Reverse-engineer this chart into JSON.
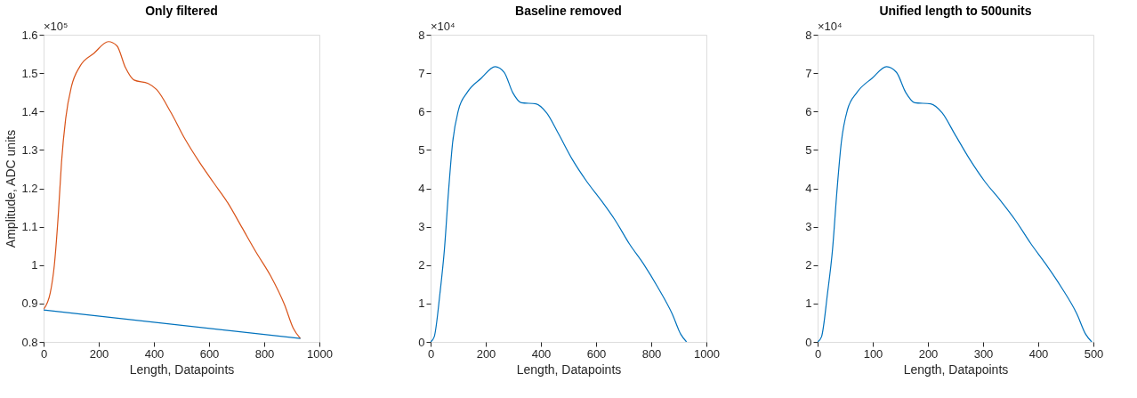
{
  "chart_data": [
    {
      "type": "line",
      "title": "Only filtered",
      "xlabel": "Length, Datapoints",
      "ylabel": "Amplitude, ADC units",
      "annotations": [
        "×10⁵"
      ],
      "xlim": [
        0,
        1000
      ],
      "xticks": [
        0,
        200,
        400,
        600,
        800,
        1000
      ],
      "ylim": [
        0.8,
        1.6
      ],
      "yticks": [
        0.8,
        0.9,
        1,
        1.1,
        1.2,
        1.3,
        1.4,
        1.5,
        1.6
      ],
      "grid": false,
      "series": [
        {
          "color": "#d95319",
          "x": [
            0,
            24,
            39,
            54,
            65,
            80,
            101,
            132,
            183,
            235,
            266,
            297,
            328,
            379,
            410,
            462,
            513,
            565,
            616,
            668,
            720,
            771,
            823,
            874,
            905,
            931
          ],
          "values": [
            0.885,
            0.927,
            1.0,
            1.139,
            1.268,
            1.381,
            1.465,
            1.518,
            1.552,
            1.582,
            1.571,
            1.514,
            1.482,
            1.473,
            1.457,
            1.397,
            1.328,
            1.268,
            1.215,
            1.162,
            1.097,
            1.033,
            0.972,
            0.896,
            0.836,
            0.809
          ]
        },
        {
          "color": "#0072bd",
          "x": [
            0,
            931
          ],
          "values": [
            0.883,
            0.809
          ]
        }
      ]
    },
    {
      "type": "line",
      "title": "Baseline removed",
      "xlabel": "Length, Datapoints",
      "annotations": [
        "×10⁴"
      ],
      "xlim": [
        0,
        1000
      ],
      "xticks": [
        0,
        200,
        400,
        600,
        800,
        1000
      ],
      "ylim": [
        0,
        8
      ],
      "yticks": [
        0,
        1,
        2,
        3,
        4,
        5,
        6,
        7,
        8
      ],
      "grid": false,
      "series": [
        {
          "color": "#0072bd",
          "x": [
            0,
            13,
            34,
            50,
            65,
            80,
            101,
            132,
            184,
            234,
            267,
            298,
            329,
            382,
            421,
            463,
            514,
            566,
            618,
            670,
            721,
            773,
            824,
            876,
            907,
            928
          ],
          "values": [
            0,
            0.13,
            1.27,
            2.4,
            3.92,
            5.2,
            6.04,
            6.49,
            6.87,
            7.17,
            7.02,
            6.49,
            6.23,
            6.2,
            5.96,
            5.43,
            4.75,
            4.18,
            3.69,
            3.16,
            2.55,
            2.02,
            1.42,
            0.73,
            0.2,
            0
          ]
        }
      ]
    },
    {
      "type": "line",
      "title": "Unified length to 500units",
      "xlabel": "Length, Datapoints",
      "annotations": [
        "×10⁴"
      ],
      "xlim": [
        0,
        500
      ],
      "xticks": [
        0,
        100,
        200,
        300,
        400,
        500
      ],
      "ylim": [
        0,
        8
      ],
      "yticks": [
        0,
        1,
        2,
        3,
        4,
        5,
        6,
        7,
        8
      ],
      "grid": false,
      "series": [
        {
          "color": "#0072bd",
          "x": [
            0,
            7,
            18,
            27,
            35,
            43,
            54,
            71,
            99,
            125,
            143,
            160,
            176,
            205,
            226,
            248,
            276,
            303,
            331,
            359,
            387,
            414,
            442,
            470,
            486,
            497
          ],
          "values": [
            0,
            0.13,
            1.27,
            2.4,
            3.92,
            5.2,
            6.04,
            6.49,
            6.87,
            7.17,
            7.02,
            6.49,
            6.23,
            6.2,
            5.96,
            5.43,
            4.75,
            4.18,
            3.69,
            3.16,
            2.55,
            2.02,
            1.42,
            0.73,
            0.2,
            0
          ]
        }
      ]
    }
  ]
}
